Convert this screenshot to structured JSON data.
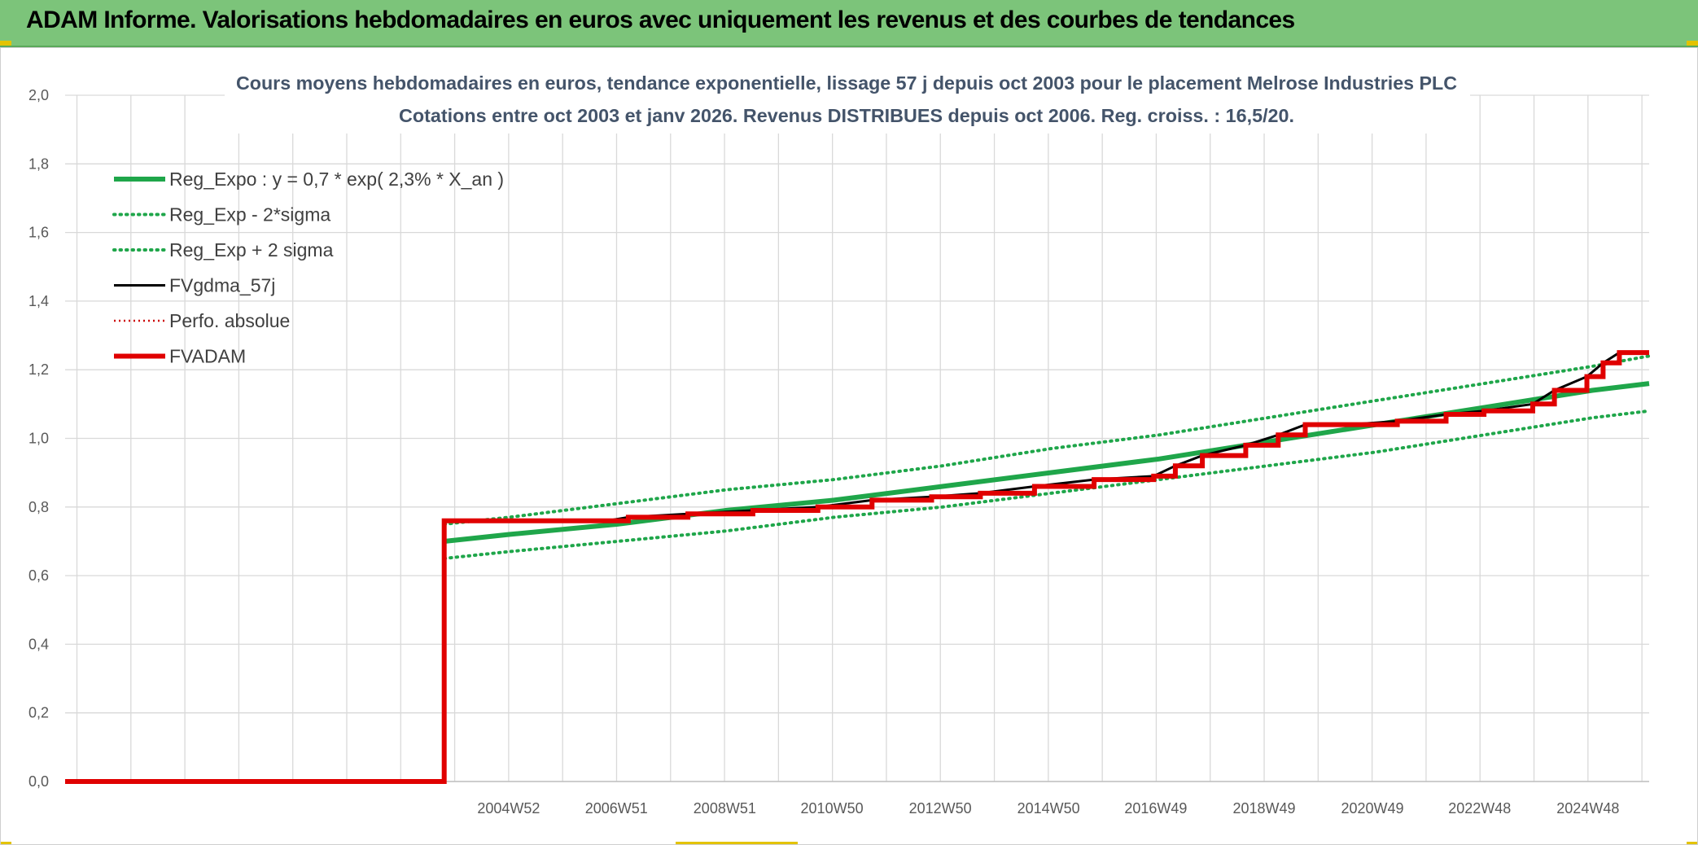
{
  "header": {
    "title": "ADAM Informe. Valorisations hebdomadaires en euros avec uniquement les revenus et des courbes de tendances"
  },
  "colors": {
    "header_bg": "#7cc47a",
    "reg_expo": "#1fa64a",
    "fvgdma": "#000000",
    "perfo": "#cc0000",
    "fvadam": "#e00000",
    "grid": "#d9d9d9",
    "title": "#44546a"
  },
  "chart_data": {
    "type": "line",
    "title": "Cours moyens hebdomadaires en euros, tendance exponentielle, lissage 57 j depuis oct 2003 pour le placement Melrose Industries PLC",
    "subtitle": "Cotations entre oct 2003 et janv 2026. Revenus DISTRIBUES depuis oct 2006. Reg. croiss. : 16,5/20.",
    "xlabel": "",
    "ylabel": "",
    "ylim": [
      0,
      2.0
    ],
    "y_ticks": [
      "0,0",
      "0,2",
      "0,4",
      "0,6",
      "0,8",
      "1,0",
      "1,2",
      "1,4",
      "1,6",
      "1,8",
      "2,0"
    ],
    "x_range": [
      1996.8,
      2026.05
    ],
    "x_ticks": [
      {
        "label": "2004W52",
        "x": 2004.99
      },
      {
        "label": "2006W51",
        "x": 2006.98
      },
      {
        "label": "2008W51",
        "x": 2008.98
      },
      {
        "label": "2010W50",
        "x": 2010.96
      },
      {
        "label": "2012W50",
        "x": 2012.96
      },
      {
        "label": "2014W50",
        "x": 2014.96
      },
      {
        "label": "2016W49",
        "x": 2016.94
      },
      {
        "label": "2018W49",
        "x": 2018.94
      },
      {
        "label": "2020W49",
        "x": 2020.94
      },
      {
        "label": "2022W48",
        "x": 2022.92
      },
      {
        "label": "2024W48",
        "x": 2024.92
      }
    ],
    "grid": true,
    "legend_position": "top-left",
    "legend": [
      {
        "name": "Reg_Expo : y = 0,7 * exp( 2,3% *  X_an )",
        "style": "solid-thick",
        "color": "#1fa64a"
      },
      {
        "name": "Reg_Exp - 2*sigma",
        "style": "dotted",
        "color": "#1fa64a"
      },
      {
        "name": "Reg_Exp + 2 sigma",
        "style": "dotted",
        "color": "#1fa64a"
      },
      {
        "name": "FVgdma_57j",
        "style": "solid",
        "color": "#000000"
      },
      {
        "name": "Perfo. absolue",
        "style": "dotted-thin",
        "color": "#cc0000"
      },
      {
        "name": "FVADAM",
        "style": "solid-thick",
        "color": "#e00000"
      }
    ],
    "series": [
      {
        "name": "Reg_Expo : y = 0,7 * exp( 2,3% *  X_an )",
        "x": [
          2003.8,
          2005.0,
          2007.0,
          2009.0,
          2011.0,
          2013.0,
          2015.0,
          2017.0,
          2019.0,
          2021.0,
          2023.0,
          2025.0,
          2026.05
        ],
        "y": [
          0.7,
          0.72,
          0.75,
          0.79,
          0.82,
          0.86,
          0.9,
          0.94,
          0.99,
          1.04,
          1.09,
          1.14,
          1.16
        ]
      },
      {
        "name": "Reg_Exp - 2*sigma",
        "x": [
          2003.8,
          2005.0,
          2007.0,
          2009.0,
          2011.0,
          2013.0,
          2015.0,
          2017.0,
          2019.0,
          2021.0,
          2023.0,
          2025.0,
          2026.05
        ],
        "y": [
          0.65,
          0.67,
          0.7,
          0.73,
          0.77,
          0.8,
          0.84,
          0.88,
          0.92,
          0.96,
          1.01,
          1.06,
          1.08
        ]
      },
      {
        "name": "Reg_Exp + 2 sigma",
        "x": [
          2003.8,
          2005.0,
          2007.0,
          2009.0,
          2011.0,
          2013.0,
          2015.0,
          2017.0,
          2019.0,
          2021.0,
          2023.0,
          2025.0,
          2026.05
        ],
        "y": [
          0.75,
          0.77,
          0.81,
          0.85,
          0.88,
          0.92,
          0.97,
          1.01,
          1.06,
          1.11,
          1.16,
          1.21,
          1.24
        ]
      },
      {
        "name": "FVgdma_57j",
        "x": [
          1996.8,
          2003.8,
          2003.8,
          2006.8,
          2007.2,
          2008.3,
          2009.5,
          2010.7,
          2011.7,
          2012.8,
          2013.7,
          2014.7,
          2015.8,
          2016.9,
          2017.3,
          2017.8,
          2018.6,
          2019.2,
          2019.7,
          2020.5,
          2021.4,
          2022.3,
          2023.0,
          2023.9,
          2024.3,
          2024.9,
          2025.2,
          2025.5,
          2026.05
        ],
        "y": [
          0.0,
          0.0,
          0.76,
          0.76,
          0.77,
          0.78,
          0.79,
          0.8,
          0.82,
          0.83,
          0.84,
          0.86,
          0.88,
          0.89,
          0.92,
          0.95,
          0.98,
          1.01,
          1.04,
          1.04,
          1.05,
          1.07,
          1.08,
          1.1,
          1.14,
          1.18,
          1.22,
          1.25,
          1.25
        ]
      },
      {
        "name": "FVADAM",
        "x": [
          1996.8,
          2003.8,
          2003.8,
          2006.8,
          2007.2,
          2008.3,
          2009.5,
          2010.7,
          2011.7,
          2012.8,
          2013.7,
          2014.7,
          2015.8,
          2016.9,
          2017.3,
          2017.8,
          2018.6,
          2019.2,
          2019.7,
          2020.5,
          2021.4,
          2022.3,
          2023.0,
          2023.9,
          2024.3,
          2024.9,
          2025.2,
          2025.5,
          2026.05
        ],
        "y": [
          0.0,
          0.0,
          0.76,
          0.76,
          0.77,
          0.78,
          0.79,
          0.8,
          0.82,
          0.83,
          0.84,
          0.86,
          0.88,
          0.89,
          0.92,
          0.95,
          0.98,
          1.01,
          1.04,
          1.04,
          1.05,
          1.07,
          1.08,
          1.1,
          1.14,
          1.18,
          1.22,
          1.25,
          1.25
        ],
        "step": true
      }
    ]
  }
}
